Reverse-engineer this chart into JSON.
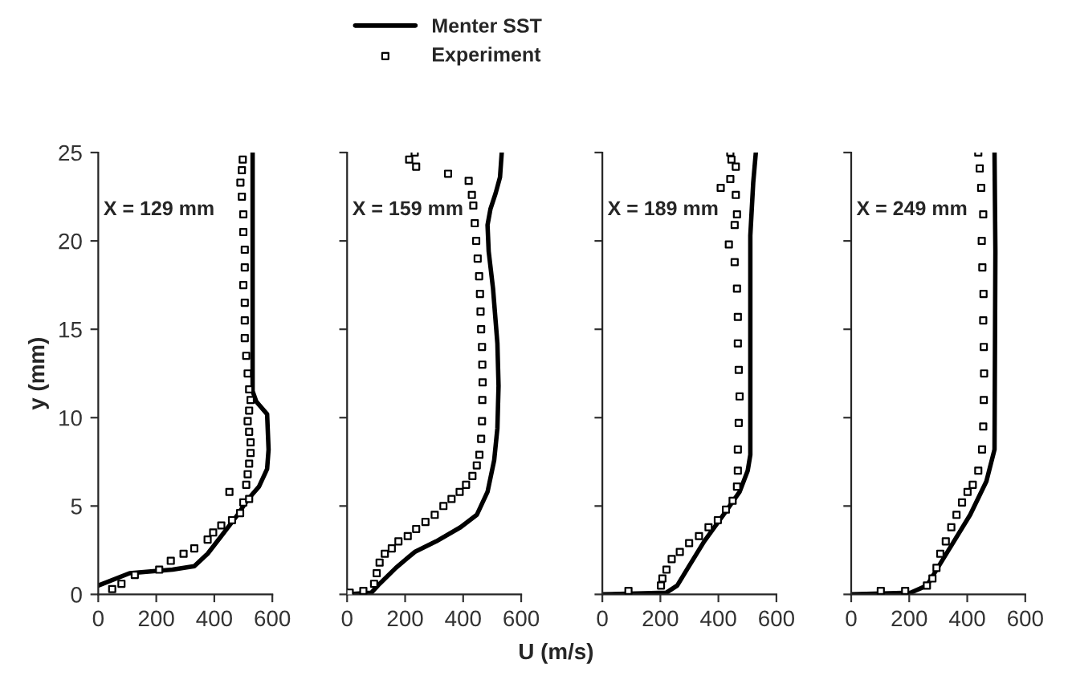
{
  "chart_data": [
    {
      "type": "line",
      "ylabel": "y (mm)",
      "annotations": [
        "X = 129 mm"
      ],
      "xlim": [
        0,
        600
      ],
      "xticks": [
        0,
        200,
        400,
        600
      ],
      "ylim": [
        0,
        25
      ],
      "yticks": [
        0,
        5,
        10,
        15,
        20,
        25
      ],
      "legend": "top",
      "grid": false,
      "series": [
        {
          "name": "Menter SST",
          "color": "#000000",
          "line_style": "solid",
          "x": [
            0,
            108,
            256,
            331,
            377,
            424,
            480,
            517,
            554,
            582,
            587,
            582,
            545,
            532,
            532
          ],
          "values": [
            0.5,
            1.2,
            1.4,
            1.6,
            2.3,
            3.3,
            4.5,
            5.4,
            6.1,
            7.1,
            8.2,
            10.2,
            10.9,
            11.5,
            25
          ]
        },
        {
          "name": "Experiment",
          "type": "scatter",
          "marker": "square",
          "color": "#000000",
          "x": [
            48,
            80,
            126,
            210,
            250,
            294,
            331,
            377,
            396,
            424,
            461,
            489,
            500,
            452,
            520,
            510,
            515,
            520,
            525,
            525,
            520,
            515,
            520,
            525,
            520,
            515,
            510,
            505,
            505,
            505,
            500,
            505,
            505,
            500,
            500,
            495,
            490,
            495,
            498
          ],
          "values": [
            0.3,
            0.6,
            1.1,
            1.4,
            1.9,
            2.3,
            2.6,
            3.1,
            3.5,
            3.9,
            4.2,
            4.6,
            5.2,
            5.8,
            5.4,
            6.2,
            6.8,
            7.4,
            8.0,
            8.6,
            9.2,
            9.8,
            10.4,
            11.0,
            11.6,
            12.5,
            13.5,
            14.5,
            15.5,
            16.5,
            17.5,
            18.5,
            19.5,
            20.5,
            21.5,
            22.5,
            23.3,
            24.0,
            24.6
          ]
        }
      ]
    },
    {
      "type": "line",
      "xlabel": "U (m/s)",
      "annotations": [
        "X = 159 mm"
      ],
      "xlim": [
        0,
        600
      ],
      "xticks": [
        0,
        200,
        400,
        600
      ],
      "ylim": [
        0,
        25
      ],
      "yticks": [
        {
          "value": 0,
          "label": null
        },
        {
          "value": 5,
          "label": null
        },
        {
          "value": 10,
          "label": null
        },
        {
          "value": 15,
          "label": null
        },
        {
          "value": 20,
          "label": null
        },
        {
          "value": 25,
          "label": null
        }
      ],
      "tick_labels": "x",
      "grid": false,
      "series": [
        {
          "color": "#000000",
          "line_style": "solid",
          "x": [
            0,
            84,
            112,
            168,
            233,
            307,
            391,
            447,
            484,
            507,
            518,
            522,
            518,
            503,
            488,
            484,
            494,
            512,
            527,
            533
          ],
          "values": [
            0,
            0.1,
            0.6,
            1.5,
            2.4,
            3.0,
            3.8,
            4.5,
            5.8,
            7.6,
            9.4,
            11.8,
            14.2,
            17.3,
            19.4,
            20.9,
            21.8,
            22.7,
            23.6,
            25
          ]
        },
        {
          "type": "scatter",
          "marker": "square",
          "color": "#000000",
          "x": [
            9,
            56,
            93,
            102,
            112,
            130,
            154,
            177,
            209,
            238,
            270,
            302,
            332,
            360,
            388,
            410,
            432,
            447,
            456,
            462,
            465,
            466,
            467,
            466,
            465,
            462,
            460,
            458,
            455,
            450,
            445,
            440,
            435,
            430,
            419,
            348,
            238,
            214,
            233
          ],
          "values": [
            0.1,
            0.2,
            0.6,
            1.2,
            1.8,
            2.3,
            2.6,
            3.0,
            3.3,
            3.7,
            4.1,
            4.5,
            5.0,
            5.4,
            5.8,
            6.2,
            6.7,
            7.3,
            7.9,
            8.8,
            9.8,
            11,
            12,
            13,
            14,
            15,
            16,
            17,
            18,
            19,
            20,
            21,
            22,
            22.6,
            23.4,
            23.8,
            24.2,
            24.6,
            25.0
          ]
        }
      ]
    },
    {
      "type": "line",
      "annotations": [
        "X = 189 mm"
      ],
      "xlim": [
        0,
        600
      ],
      "xticks": [
        0,
        200,
        400,
        600
      ],
      "ylim": [
        0,
        25
      ],
      "yticks": [
        {
          "value": 0,
          "label": null
        },
        {
          "value": 5,
          "label": null
        },
        {
          "value": 10,
          "label": null
        },
        {
          "value": 15,
          "label": null
        },
        {
          "value": 20,
          "label": null
        },
        {
          "value": 25,
          "label": null
        }
      ],
      "tick_labels": "x",
      "grid": false,
      "series": [
        {
          "color": "#000000",
          "line_style": "solid",
          "x": [
            0,
            221,
            258,
            295,
            351,
            426,
            473,
            501,
            510,
            510,
            520,
            529
          ],
          "values": [
            0,
            0.1,
            0.5,
            1.5,
            3.0,
            4.7,
            5.8,
            7.0,
            7.9,
            20.3,
            23.3,
            25
          ]
        },
        {
          "type": "scatter",
          "marker": "square",
          "color": "#000000",
          "x": [
            90,
            202,
            207,
            221,
            239,
            267,
            299,
            333,
            366,
            398,
            426,
            449,
            464,
            467,
            467,
            470,
            473,
            470,
            467,
            467,
            464,
            456,
            436,
            456,
            464,
            460,
            408,
            441,
            460,
            445,
            441
          ],
          "values": [
            0.2,
            0.5,
            0.9,
            1.4,
            2.0,
            2.4,
            2.9,
            3.3,
            3.8,
            4.2,
            4.8,
            5.3,
            6.1,
            7.0,
            8.2,
            9.7,
            11.2,
            12.7,
            14.2,
            15.7,
            17.3,
            18.8,
            19.8,
            20.9,
            21.5,
            22.6,
            23.0,
            23.5,
            24.2,
            24.6,
            25.0
          ]
        }
      ]
    },
    {
      "type": "line",
      "annotations": [
        "X = 249 mm"
      ],
      "xlim": [
        0,
        600
      ],
      "xticks": [
        0,
        200,
        400,
        600
      ],
      "ylim": [
        0,
        25
      ],
      "yticks": [
        {
          "value": 0,
          "label": null
        },
        {
          "value": 5,
          "label": null
        },
        {
          "value": 10,
          "label": null
        },
        {
          "value": 15,
          "label": null
        },
        {
          "value": 20,
          "label": null
        },
        {
          "value": 25,
          "label": null
        }
      ],
      "tick_labels": "x",
      "grid": false,
      "series": [
        {
          "color": "#000000",
          "line_style": "solid",
          "x": [
            0,
            205,
            261,
            298,
            354,
            410,
            466,
            494,
            497,
            494
          ],
          "values": [
            0,
            0.1,
            0.5,
            1.5,
            3.0,
            4.5,
            6.4,
            8.2,
            19.4,
            25
          ]
        },
        {
          "type": "scatter",
          "marker": "square",
          "color": "#000000",
          "x": [
            102,
            186,
            261,
            280,
            294,
            307,
            326,
            345,
            363,
            382,
            401,
            419,
            438,
            451,
            455,
            457,
            458,
            457,
            455,
            456,
            452,
            450,
            455,
            448,
            443,
            438
          ],
          "values": [
            0.2,
            0.2,
            0.5,
            0.9,
            1.5,
            2.3,
            3.0,
            3.8,
            4.5,
            5.2,
            5.8,
            6.2,
            7.0,
            8.2,
            9.5,
            11,
            12.5,
            14,
            15.5,
            17,
            18.5,
            20,
            21.5,
            23,
            24.1,
            25
          ]
        }
      ]
    }
  ]
}
